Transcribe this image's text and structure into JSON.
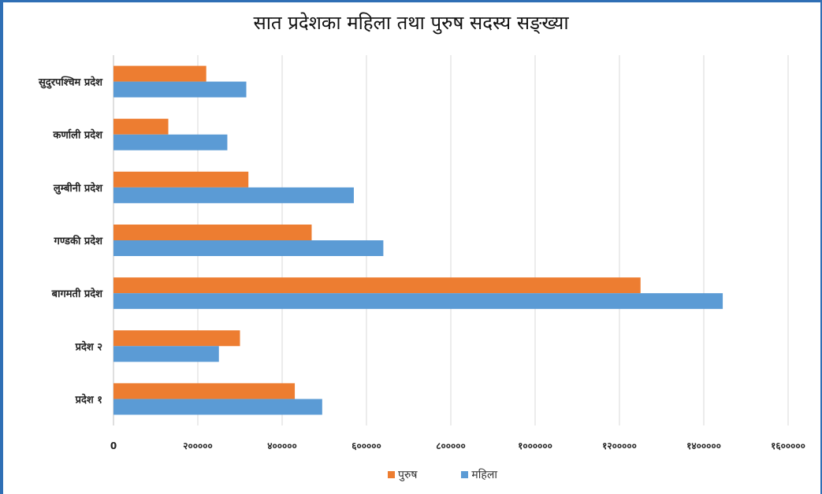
{
  "chart_data": {
    "type": "bar",
    "orientation": "horizontal",
    "title": "सात प्रदेशका महिला तथा पुरुष सदस्य सङ्ख्या",
    "categories": [
      "प्रदेश १",
      "प्रदेश २",
      "बागमती प्रदेश",
      "गण्डकी प्रदेश",
      "लुम्बीनी प्रदेश",
      "कर्णाली प्रदेश",
      "सुदुरपश्चिम प्रदेश"
    ],
    "series": [
      {
        "name": "पुरुष",
        "color": "#ed7d31",
        "values": [
          430000,
          300000,
          1250000,
          470000,
          320000,
          130000,
          220000
        ]
      },
      {
        "name": "महिला",
        "color": "#5b9bd5",
        "values": [
          495000,
          250000,
          1445000,
          640000,
          570000,
          270000,
          315000
        ]
      }
    ],
    "xlim": [
      0,
      1600000
    ],
    "x_ticks": [
      0,
      200000,
      400000,
      600000,
      800000,
      1000000,
      1200000,
      1400000,
      1600000
    ],
    "x_tick_labels": [
      "0",
      "२०००००",
      "४०००००",
      "६०००००",
      "८०००००",
      "१००००००",
      "१२०००००",
      "१४०००००",
      "१६०००००"
    ],
    "grid": true,
    "legend_position": "bottom"
  }
}
